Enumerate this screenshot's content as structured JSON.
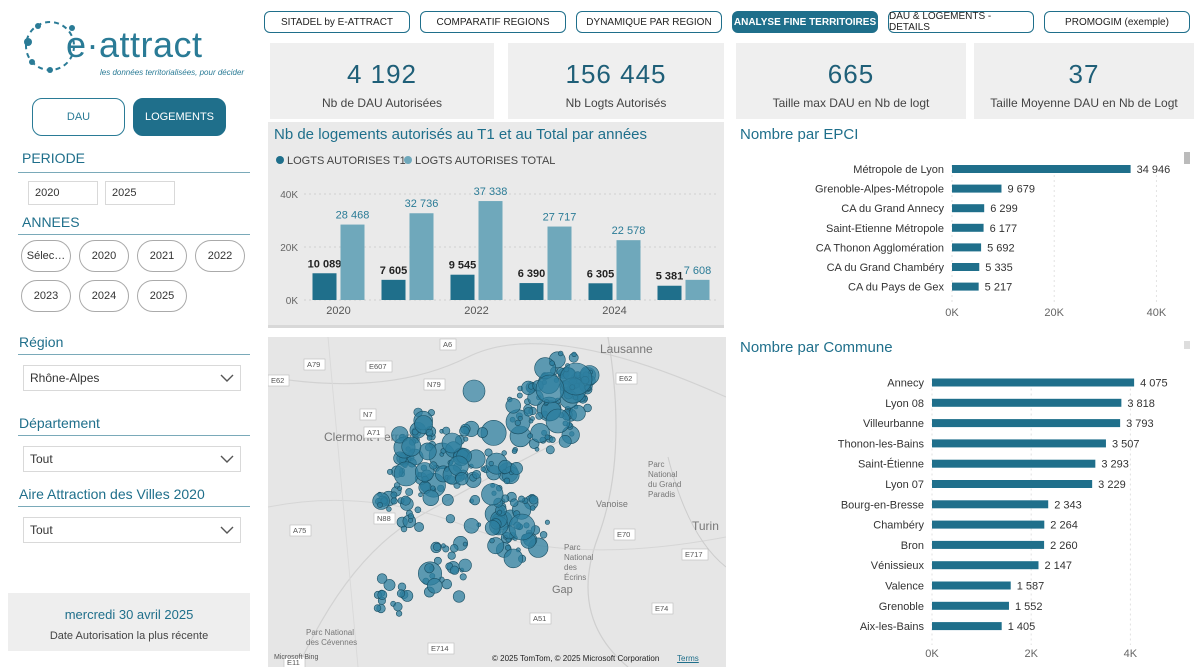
{
  "logo": {
    "name": "e·attract",
    "tagline": "les données territorialisées, pour décider"
  },
  "toggles": {
    "dau": "DAU",
    "logements": "LOGEMENTS"
  },
  "periode": {
    "label": "PERIODE",
    "start": "2020",
    "end": "2025"
  },
  "annees": {
    "label": "ANNEES",
    "pills": [
      "Sélec…",
      "2020",
      "2021",
      "2022",
      "2023",
      "2024",
      "2025"
    ]
  },
  "region": {
    "label": "Région",
    "value": "Rhône-Alpes"
  },
  "departement": {
    "label": "Département",
    "value": "Tout"
  },
  "aire": {
    "label": "Aire Attraction des Villes 2020",
    "value": "Tout"
  },
  "recent": {
    "date": "mercredi 30 avril 2025",
    "label": "Date Autorisation la plus récente"
  },
  "tabs": [
    {
      "label": "SITADEL by E-ATTRACT",
      "active": false
    },
    {
      "label": "COMPARATIF REGIONS",
      "active": false
    },
    {
      "label": "DYNAMIQUE PAR REGION",
      "active": false
    },
    {
      "label": "ANALYSE FINE TERRITOIRES",
      "active": true
    },
    {
      "label": "DAU & LOGEMENTS - DETAILS",
      "active": false
    },
    {
      "label": "PROMOGIM (exemple)",
      "active": false
    }
  ],
  "kpis": [
    {
      "value": "4 192",
      "label": "Nb de DAU Autorisées"
    },
    {
      "value": "156 445",
      "label": "Nb Logts Autorisés"
    },
    {
      "value": "665",
      "label": "Taille max DAU en Nb de logt"
    },
    {
      "value": "37",
      "label": "Taille Moyenne DAU en Nb de Logt"
    }
  ],
  "colors": {
    "accent": "#1f6f8b",
    "series_t1": "#1f6f8b",
    "series_total": "#6fa8bb",
    "bar_h": "#1f6f8b",
    "bubble": "#2e7f9f"
  },
  "chart_data": [
    {
      "type": "bar",
      "title": "Nb de logements autorisés au T1 et au Total par années",
      "legend_position": "top-left",
      "categories": [
        "2020",
        "2021",
        "2022",
        "2023",
        "2024",
        "2025"
      ],
      "x_tick_labels": [
        "2020",
        "",
        "2022",
        "",
        "2024",
        ""
      ],
      "ylim": [
        0,
        40000
      ],
      "y_ticks": [
        {
          "value": 0,
          "label": "0K"
        },
        {
          "value": 20000,
          "label": "20K"
        },
        {
          "value": 40000,
          "label": "40K"
        }
      ],
      "series": [
        {
          "name": "LOGTS AUTORISES  T1",
          "values": [
            10089,
            7605,
            9545,
            6390,
            6305,
            5381
          ],
          "labels": [
            "10 089",
            "7 605",
            "9 545",
            "6 390",
            "6 305",
            "5 381"
          ]
        },
        {
          "name": "LOGTS AUTORISES TOTAL",
          "values": [
            28468,
            32736,
            37338,
            27717,
            22578,
            7608
          ],
          "labels": [
            "28 468",
            "32 736",
            "37 338",
            "27 717",
            "22 578",
            "7 608"
          ]
        }
      ]
    },
    {
      "type": "bar",
      "orientation": "horizontal",
      "title": "Nombre par EPCI",
      "categories": [
        "Métropole de Lyon",
        "Grenoble-Alpes-Métropole",
        "CA du Grand Annecy",
        "Saint-Etienne Métropole",
        "CA Thonon Agglomération",
        "CA du Grand Chambéry",
        "CA du Pays de Gex"
      ],
      "values": [
        34946,
        9679,
        6299,
        6177,
        5692,
        5335,
        5217
      ],
      "labels": [
        "34 946",
        "9 679",
        "6 299",
        "6 177",
        "5 692",
        "5 335",
        "5 217"
      ],
      "xlim": [
        0,
        45000
      ],
      "x_ticks": [
        {
          "value": 0,
          "label": "0K"
        },
        {
          "value": 20000,
          "label": "20K"
        },
        {
          "value": 40000,
          "label": "40K"
        }
      ]
    },
    {
      "type": "bar",
      "orientation": "horizontal",
      "title": "Nombre par Commune",
      "categories": [
        "Annecy",
        "Lyon 08",
        "Villeurbanne",
        "Thonon-les-Bains",
        "Saint-Étienne",
        "Lyon 07",
        "Bourg-en-Bresse",
        "Chambéry",
        "Bron",
        "Vénissieux",
        "Valence",
        "Grenoble",
        "Aix-les-Bains"
      ],
      "values": [
        4075,
        3818,
        3793,
        3507,
        3293,
        3229,
        2343,
        2264,
        2260,
        2147,
        1587,
        1552,
        1405
      ],
      "labels": [
        "4 075",
        "3 818",
        "3 793",
        "3 507",
        "3 293",
        "3 229",
        "2 343",
        "2 264",
        "2 260",
        "2 147",
        "1 587",
        "1 552",
        "1 405"
      ],
      "xlim": [
        0,
        5000
      ],
      "x_ticks": [
        {
          "value": 0,
          "label": "0K"
        },
        {
          "value": 2000,
          "label": "2K"
        },
        {
          "value": 4000,
          "label": "4K"
        }
      ]
    }
  ],
  "map": {
    "place_labels": [
      "Lausanne",
      "Clermont-Ferrand",
      "Turin",
      "Parc National du Grand Paradis",
      "Parc National des Écrins",
      "Gap",
      "Parc National des Cévennes",
      "Vanoise",
      "Grenoble"
    ],
    "road_labels": [
      "A6",
      "A79",
      "E607",
      "N79",
      "E62",
      "A71",
      "N7",
      "E62",
      "N88",
      "A75",
      "E70",
      "E717",
      "E74",
      "A51",
      "E714",
      "E11",
      "A43"
    ],
    "attribution": "© 2025 TomTom, © 2025 Microsoft Corporation",
    "terms": "Terms",
    "bing": "Microsoft Bing"
  }
}
